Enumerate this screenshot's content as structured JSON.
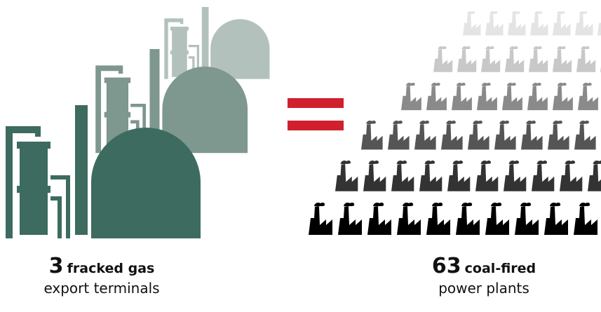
{
  "left": {
    "number": "3",
    "label": "fracked gas",
    "sublabel": "export terminals"
  },
  "right": {
    "number": "63",
    "label": "coal-fired",
    "sublabel": "power plants"
  }
}
